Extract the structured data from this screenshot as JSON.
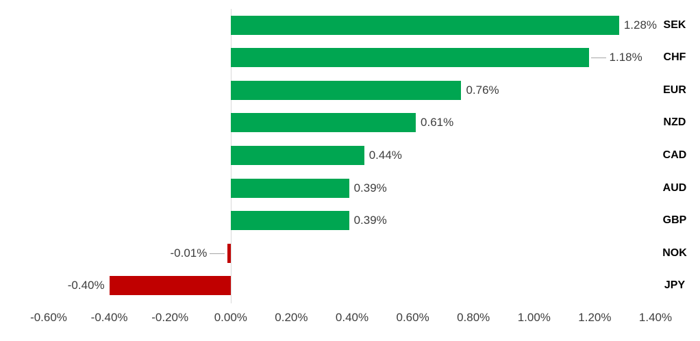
{
  "chart_data": {
    "type": "bar",
    "orientation": "horizontal",
    "title": "",
    "xlabel": "",
    "ylabel": "",
    "categories": [
      "SEK",
      "CHF",
      "EUR",
      "NZD",
      "CAD",
      "AUD",
      "GBP",
      "NOK",
      "JPY"
    ],
    "values": [
      1.28,
      1.18,
      0.76,
      0.61,
      0.44,
      0.39,
      0.39,
      -0.01,
      -0.4
    ],
    "data_labels": [
      "1.28%",
      "1.18%",
      "0.76%",
      "0.61%",
      "0.44%",
      "0.39%",
      "0.39%",
      "-0.01%",
      "-0.40%"
    ],
    "x_tick_labels": [
      "-0.60%",
      "-0.40%",
      "-0.20%",
      "0.00%",
      "0.20%",
      "0.40%",
      "0.60%",
      "0.80%",
      "1.00%",
      "1.20%",
      "1.40%"
    ],
    "xlim": [
      -0.6,
      1.4
    ],
    "tick_step": 0.2,
    "grid": false,
    "legend": "none",
    "leader_line_categories": [
      "CHF",
      "NOK"
    ],
    "colors": {
      "positive_bar": "#00a651",
      "negative_bar": "#c00000",
      "axis_line": "#d9d9d9",
      "leader_line": "#a6a6a6",
      "value_label": "#3d3d3d",
      "tick_label": "#3d3d3d",
      "category_label": "#000000"
    }
  }
}
